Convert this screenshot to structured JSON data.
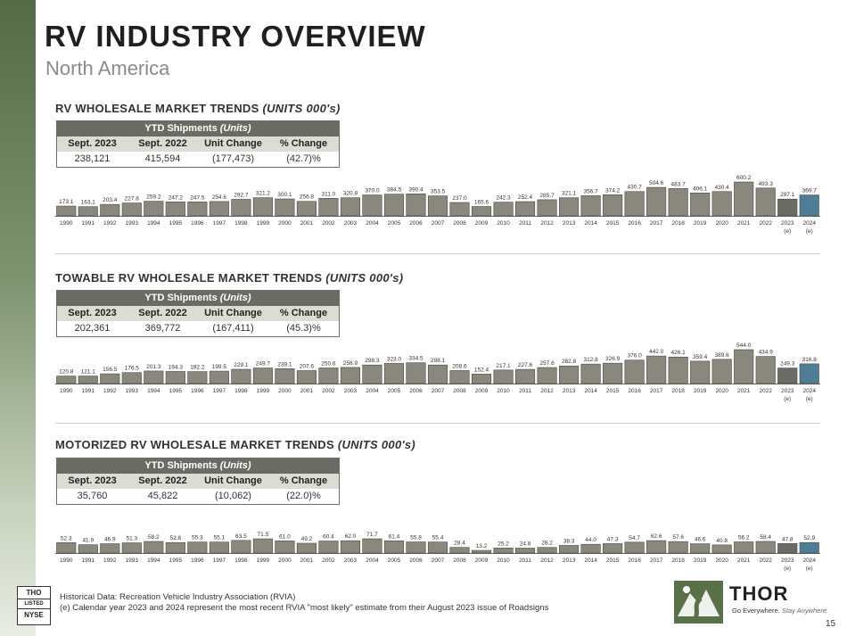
{
  "header": {
    "title": "RV INDUSTRY OVERVIEW",
    "subtitle": "North America"
  },
  "ytd_labels": {
    "header_main": "YTD Shipments ",
    "header_em": "(Units)",
    "col1": "Sept. 2023",
    "col2": "Sept. 2022",
    "col3": "Unit Change",
    "col4": "% Change"
  },
  "sections": [
    {
      "title_main": "RV WHOLESALE MARKET TRENDS ",
      "title_em": "(UNITS 000's)",
      "ytd": {
        "sept2023": "238,121",
        "sept2022": "415,594",
        "unit_change": "(177,473)",
        "pct_change": "(42.7)%"
      }
    },
    {
      "title_main": "TOWABLE RV WHOLESALE MARKET TRENDS ",
      "title_em": "(UNITS 000's)",
      "ytd": {
        "sept2023": "202,361",
        "sept2022": "369,772",
        "unit_change": "(167,411)",
        "pct_change": "(45.3)%"
      }
    },
    {
      "title_main": "MOTORIZED RV WHOLESALE MARKET TRENDS ",
      "title_em": "(UNITS 000's)",
      "ytd": {
        "sept2023": "35,760",
        "sept2022": "45,822",
        "unit_change": "(10,062)",
        "pct_change": "(22.0)%"
      }
    }
  ],
  "chart_data": [
    {
      "type": "bar",
      "title": "RV WHOLESALE MARKET TRENDS (UNITS 000's)",
      "categories": [
        "1990",
        "1991",
        "1992",
        "1993",
        "1994",
        "1995",
        "1996",
        "1997",
        "1998",
        "1999",
        "2000",
        "2001",
        "2002",
        "2003",
        "2004",
        "2005",
        "2006",
        "2007",
        "2008",
        "2009",
        "2010",
        "2011",
        "2012",
        "2013",
        "2014",
        "2015",
        "2016",
        "2017",
        "2018",
        "2019",
        "2020",
        "2021",
        "2022",
        "2023",
        "2024"
      ],
      "category_notes": {
        "2023": "(e)",
        "2024": "(e)"
      },
      "values": [
        173.1,
        163.1,
        203.4,
        227.8,
        259.2,
        247.2,
        247.5,
        254.6,
        292.7,
        321.2,
        300.1,
        256.8,
        311.0,
        320.8,
        370.0,
        384.5,
        390.4,
        353.5,
        237.0,
        165.6,
        242.3,
        252.4,
        285.7,
        321.1,
        356.7,
        374.2,
        430.7,
        504.6,
        483.7,
        406.1,
        430.4,
        600.2,
        493.3,
        297.1,
        369.7
      ],
      "value_labels": [
        "173.1",
        "163.1",
        "203.4",
        "227.8",
        "259.2",
        "247.2",
        "247.5",
        "254.6",
        "292.7",
        "321.2",
        "300.1",
        "256.8",
        "311.0",
        "320.8",
        "370.0",
        "384.5",
        "390.4",
        "353.5",
        "237.0",
        "165.6",
        "242.3",
        "252.4",
        "285.7",
        "321.1",
        "356.7",
        "374.2",
        "430.7",
        "504.6",
        "483.7",
        "406.1",
        "430.4",
        "600.2",
        "493.3",
        "297.1",
        "369.7"
      ],
      "estimate_categories": [
        "2023",
        "2024"
      ],
      "colors": {
        "bar": "#8a887c",
        "estimate_2023": "#6b6b63",
        "estimate_2024": "#4f7d96"
      }
    },
    {
      "type": "bar",
      "title": "TOWABLE RV WHOLESALE MARKET TRENDS (UNITS 000's)",
      "categories": [
        "1990",
        "1991",
        "1992",
        "1993",
        "1994",
        "1995",
        "1996",
        "1997",
        "1998",
        "1999",
        "2000",
        "2001",
        "2002",
        "2003",
        "2004",
        "2005",
        "2006",
        "2007",
        "2008",
        "2009",
        "2010",
        "2011",
        "2012",
        "2013",
        "2014",
        "2015",
        "2016",
        "2017",
        "2018",
        "2019",
        "2020",
        "2021",
        "2022",
        "2023",
        "2024"
      ],
      "category_notes": {
        "2023": "(e)",
        "2024": "(e)"
      },
      "values": [
        120.8,
        121.1,
        156.5,
        176.5,
        201.3,
        194.3,
        192.2,
        199.5,
        229.1,
        249.7,
        239.1,
        207.6,
        250.6,
        258.9,
        298.3,
        323.0,
        334.5,
        298.1,
        208.6,
        152.4,
        217.1,
        227.6,
        257.6,
        282.8,
        312.8,
        326.9,
        376.0,
        442.0,
        426.1,
        359.4,
        389.6,
        544.0,
        434.9,
        249.3,
        316.8
      ],
      "value_labels": [
        "120.8",
        "121.1",
        "156.5",
        "176.5",
        "201.3",
        "194.3",
        "192.2",
        "199.5",
        "229.1",
        "249.7",
        "239.1",
        "207.6",
        "250.6",
        "258.9",
        "298.3",
        "323.0",
        "334.5",
        "298.1",
        "208.6",
        "152.4",
        "217.1",
        "227.6",
        "257.6",
        "282.8",
        "312.8",
        "326.9",
        "376.0",
        "442.0",
        "426.1",
        "359.4",
        "389.6",
        "544.0",
        "434.9",
        "249.3",
        "316.8"
      ],
      "estimate_categories": [
        "2023",
        "2024"
      ],
      "colors": {
        "bar": "#8a887c",
        "estimate_2023": "#6b6b63",
        "estimate_2024": "#4f7d96"
      }
    },
    {
      "type": "bar",
      "title": "MOTORIZED RV WHOLESALE MARKET TRENDS (UNITS 000's)",
      "categories": [
        "1990",
        "1991",
        "1992",
        "1993",
        "1994",
        "1995",
        "1996",
        "1997",
        "1998",
        "1999",
        "2000",
        "2001",
        "2002",
        "2003",
        "2004",
        "2005",
        "2006",
        "2007",
        "2008",
        "2009",
        "2010",
        "2011",
        "2012",
        "2013",
        "2014",
        "2015",
        "2016",
        "2017",
        "2018",
        "2019",
        "2020",
        "2021",
        "2022",
        "2023",
        "2024"
      ],
      "category_notes": {
        "2023": "(e)",
        "2024": "(e)"
      },
      "values": [
        52.3,
        41.9,
        46.9,
        51.3,
        58.2,
        52.8,
        55.3,
        55.1,
        63.5,
        71.5,
        61.0,
        49.2,
        60.4,
        62.0,
        71.7,
        61.4,
        55.8,
        55.4,
        28.4,
        13.2,
        25.2,
        24.8,
        28.2,
        38.3,
        44.0,
        47.3,
        54.7,
        62.6,
        57.6,
        46.6,
        40.8,
        56.2,
        58.4,
        47.8,
        52.9
      ],
      "value_labels": [
        "52.3",
        "41.9",
        "46.9",
        "51.3",
        "58.2",
        "52.8",
        "55.3",
        "55.1",
        "63.5",
        "71.5",
        "61.0",
        "49.2",
        "60.4",
        "62.0",
        "71.7",
        "61.4",
        "55.8",
        "55.4",
        "28.4",
        "13.2",
        "25.2",
        "24.8",
        "28.2",
        "38.3",
        "44.0",
        "47.3",
        "54.7",
        "62.6",
        "57.6",
        "46.6",
        "40.8",
        "56.2",
        "58.4",
        "47.8",
        "52.9"
      ],
      "estimate_categories": [
        "2023",
        "2024"
      ],
      "colors": {
        "bar": "#8a887c",
        "estimate_2023": "#6b6b63",
        "estimate_2024": "#4f7d96"
      }
    }
  ],
  "footer": {
    "source": "Historical Data: Recreation Vehicle Industry Association (RVIA)",
    "estimate_note": "(e) Calendar year 2023 and 2024 represent the most recent RVIA \"most likely\" estimate from their August 2023 issue of Roadsigns",
    "page_number": "15"
  },
  "brand": {
    "exchange_top": "THO",
    "exchange_mid": "LISTED",
    "exchange_bottom": "NYSE",
    "name": "THOR",
    "tagline_main": "Go Everywhere. ",
    "tagline_em": "Stay Anywhere."
  },
  "colors": {
    "sidebar": "#6b8558",
    "table_header": "#6b6b63",
    "table_label_row": "#dcdcd4",
    "brand_green": "#5a7048"
  }
}
